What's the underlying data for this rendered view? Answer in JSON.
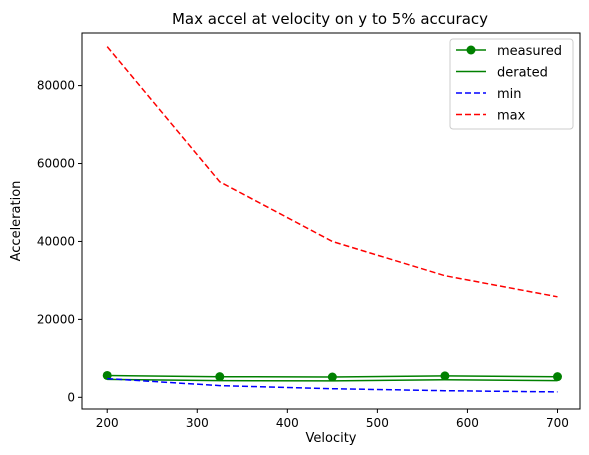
{
  "chart_data": {
    "type": "line",
    "title": "Max accel at velocity on y to 5% accuracy",
    "xlabel": "Velocity",
    "ylabel": "Acceleration",
    "x": [
      200,
      325,
      450,
      575,
      700
    ],
    "xlim": [
      172,
      725
    ],
    "ylim": [
      -3000,
      93500
    ],
    "xticks": [
      200,
      300,
      400,
      500,
      600,
      700
    ],
    "yticks": [
      0,
      20000,
      40000,
      60000,
      80000
    ],
    "legend_position": "top-right",
    "grid": false,
    "series": [
      {
        "name": "measured",
        "values": [
          5600,
          5300,
          5200,
          5500,
          5300
        ],
        "color": "#008000",
        "style": "solid",
        "marker": "circle"
      },
      {
        "name": "derated",
        "values": [
          4600,
          4300,
          4200,
          4500,
          4300
        ],
        "color": "#008000",
        "style": "solid",
        "marker": "none"
      },
      {
        "name": "min",
        "values": [
          4800,
          3000,
          2200,
          1700,
          1400
        ],
        "color": "#0000ff",
        "style": "dashed",
        "marker": "none"
      },
      {
        "name": "max",
        "values": [
          90000,
          55300,
          40000,
          31200,
          25800
        ],
        "color": "#ff0000",
        "style": "dashed",
        "marker": "none"
      }
    ]
  }
}
